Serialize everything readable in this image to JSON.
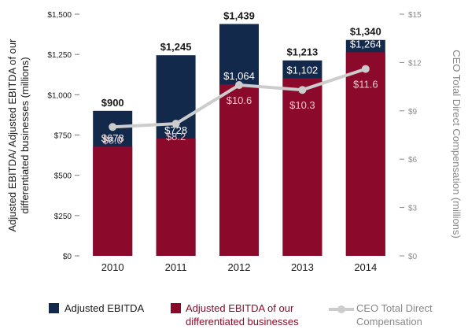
{
  "chart_data": {
    "type": "bar",
    "categories": [
      "2010",
      "2011",
      "2012",
      "2013",
      "2014"
    ],
    "series": [
      {
        "name": "Adjusted EBITDA",
        "values": [
          900,
          1245,
          1439,
          1213,
          1340
        ],
        "color": "#13294b",
        "labels": [
          "$900",
          "$1,245",
          "$1,439",
          "$1,213",
          "$1,340"
        ]
      },
      {
        "name": "Adjusted EBITDA of our differentiated businesses",
        "values": [
          678,
          728,
          1064,
          1102,
          1264
        ],
        "color": "#8b0a2b",
        "labels": [
          "$678",
          "$728",
          "$1,064",
          "$1,102",
          "$1,264"
        ]
      },
      {
        "name": "CEO Total Direct Compensation",
        "type": "line",
        "axis": "right",
        "values": [
          8.0,
          8.2,
          10.6,
          10.3,
          11.6
        ],
        "color": "#cccccc",
        "labels": [
          "$8.0",
          "$8.2",
          "$10.6",
          "$10.3",
          "$11.6"
        ]
      }
    ],
    "ylabel": "Adjusted EBITDA/ Adjusted EBITDA of our differentiated businesses (millions)",
    "ylabel_lines": [
      "Adjusted EBITDA/ Adjusted EBITDA of our",
      "differentiated businesses (millions)"
    ],
    "y2label": "CEO Total Direct Compensation (millions)",
    "ylim": [
      0,
      1500
    ],
    "y2lim": [
      0,
      15
    ],
    "yticks": [
      "$0",
      "$250",
      "$500",
      "$750",
      "$1,000",
      "$1,250",
      "$1,500"
    ],
    "y2ticks": [
      "$0",
      "$3",
      "$6",
      "$9",
      "$12",
      "$15"
    ],
    "grid": false,
    "legend_position": "bottom"
  },
  "legend": {
    "ebitda": "Adjusted EBITDA",
    "diff_line1": "Adjusted EBITDA of our",
    "diff_line2": "differentiated businesses",
    "ceo_line1": "CEO Total Direct",
    "ceo_line2": "Compensation"
  }
}
